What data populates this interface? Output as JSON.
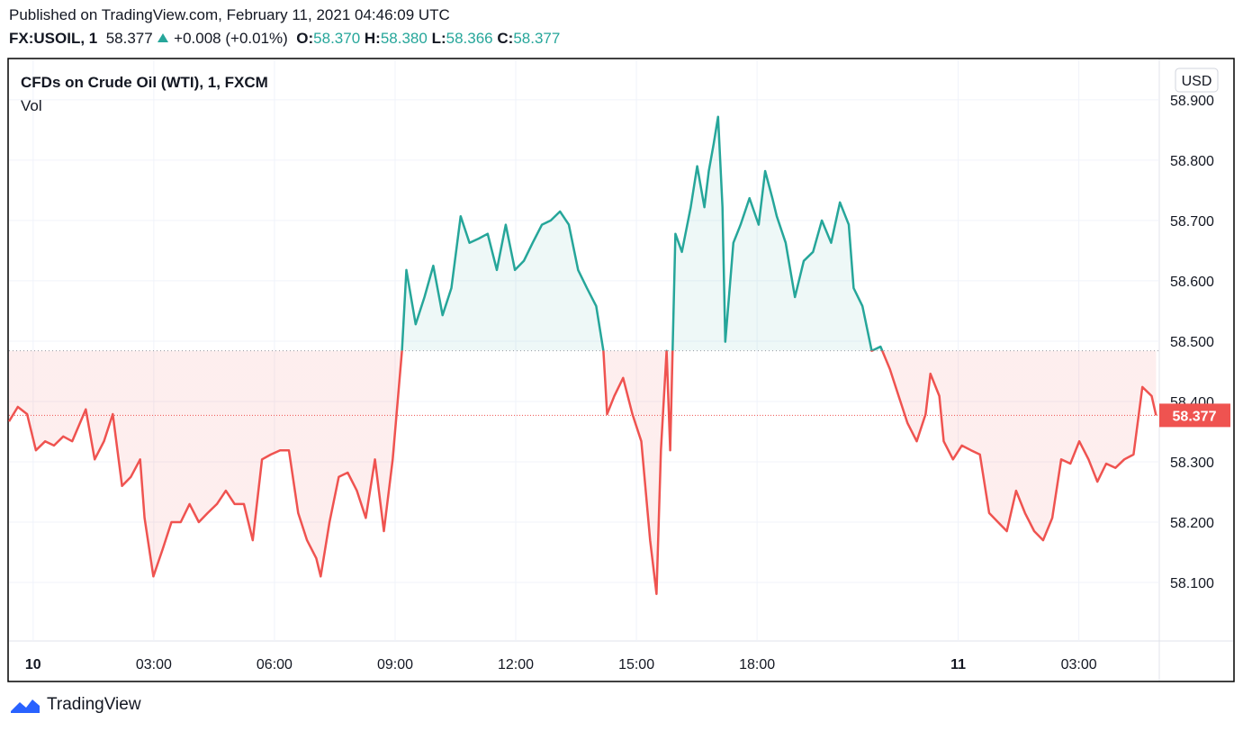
{
  "header": {
    "published": "Published on TradingView.com, February 11, 2021 04:46:09 UTC",
    "symbol": "FX:USOIL, 1",
    "last": "58.377",
    "change": "+0.008 (+0.01%)",
    "ohlc": [
      {
        "label": "O:",
        "value": "58.370"
      },
      {
        "label": "H:",
        "value": "58.380"
      },
      {
        "label": "L:",
        "value": "58.366"
      },
      {
        "label": "C:",
        "value": "58.377"
      }
    ]
  },
  "chart_data": {
    "type": "line",
    "title": "CFDs on Crude Oil (WTI), 1, FXCM",
    "indicator": "Vol",
    "currency": "USD",
    "color_up": "#26a69a",
    "color_down": "#ef5350",
    "baseline": 58.484,
    "last_value": 58.377,
    "grid": true,
    "xlim": [
      -0.6,
      28.0
    ],
    "ylim": [
      58.003,
      58.967
    ],
    "xticks": [
      {
        "value": 0,
        "label": "10"
      },
      {
        "value": 3,
        "label": "03:00"
      },
      {
        "value": 6,
        "label": "06:00"
      },
      {
        "value": 9,
        "label": "09:00"
      },
      {
        "value": 12,
        "label": "12:00"
      },
      {
        "value": 15,
        "label": "15:00"
      },
      {
        "value": 18,
        "label": "18:00"
      },
      {
        "value": 23,
        "label": "11"
      },
      {
        "value": 26,
        "label": "03:00"
      }
    ],
    "yticks": [
      {
        "value": 58.1,
        "label": "58.100"
      },
      {
        "value": 58.2,
        "label": "58.200"
      },
      {
        "value": 58.3,
        "label": "58.300"
      },
      {
        "value": 58.4,
        "label": "58.400"
      },
      {
        "value": 58.5,
        "label": "58.500"
      },
      {
        "value": 58.6,
        "label": "58.600"
      },
      {
        "value": 58.7,
        "label": "58.700"
      },
      {
        "value": 58.8,
        "label": "58.800"
      },
      {
        "value": 58.9,
        "label": "58.900"
      }
    ],
    "x": [
      -0.6,
      -0.38,
      -0.15,
      0.07,
      0.3,
      0.52,
      0.75,
      0.97,
      1.31,
      1.53,
      1.76,
      1.98,
      2.21,
      2.43,
      2.66,
      2.77,
      2.99,
      3.22,
      3.44,
      3.67,
      3.89,
      4.12,
      4.34,
      4.57,
      4.79,
      5.01,
      5.24,
      5.46,
      5.69,
      5.91,
      6.14,
      6.36,
      6.59,
      6.81,
      7.04,
      7.15,
      7.37,
      7.6,
      7.82,
      8.05,
      8.27,
      8.5,
      8.72,
      8.94,
      9.17,
      9.28,
      9.51,
      9.73,
      9.95,
      10.18,
      10.4,
      10.63,
      10.85,
      11.08,
      11.3,
      11.53,
      11.75,
      11.98,
      12.2,
      12.42,
      12.65,
      12.87,
      13.1,
      13.32,
      13.55,
      13.77,
      14.0,
      14.18,
      14.27,
      14.45,
      14.67,
      14.9,
      15.12,
      15.34,
      15.5,
      15.61,
      15.75,
      15.84,
      15.97,
      16.13,
      16.35,
      16.51,
      16.69,
      16.8,
      16.92,
      17.03,
      17.14,
      17.21,
      17.3,
      17.41,
      17.59,
      17.81,
      18.04,
      18.2,
      18.38,
      18.49,
      18.71,
      18.94,
      19.16,
      19.39,
      19.61,
      19.84,
      20.06,
      20.28,
      20.4,
      20.62,
      20.85,
      21.07,
      21.3,
      21.52,
      21.74,
      21.97,
      22.19,
      22.31,
      22.53,
      22.64,
      22.87,
      23.09,
      23.32,
      23.54,
      23.77,
      23.99,
      24.21,
      24.44,
      24.66,
      24.89,
      25.11,
      25.34,
      25.56,
      25.79,
      26.01,
      26.24,
      26.46,
      26.68,
      26.91,
      27.13,
      27.36,
      27.58,
      27.81,
      27.92
    ],
    "values": [
      58.367,
      58.391,
      58.379,
      58.319,
      58.334,
      58.327,
      58.342,
      58.334,
      58.387,
      58.304,
      58.334,
      58.379,
      58.26,
      58.275,
      58.304,
      58.207,
      58.11,
      58.155,
      58.2,
      58.2,
      58.23,
      58.2,
      58.215,
      58.23,
      58.252,
      58.23,
      58.23,
      58.17,
      58.304,
      58.312,
      58.319,
      58.319,
      58.215,
      58.17,
      58.14,
      58.11,
      58.2,
      58.275,
      58.282,
      58.252,
      58.207,
      58.304,
      58.185,
      58.304,
      58.484,
      58.618,
      58.528,
      58.573,
      58.625,
      58.543,
      58.588,
      58.707,
      58.663,
      58.67,
      58.678,
      58.618,
      58.693,
      58.618,
      58.633,
      58.663,
      58.693,
      58.7,
      58.715,
      58.693,
      58.618,
      58.588,
      58.558,
      58.484,
      58.379,
      58.409,
      58.439,
      58.379,
      58.334,
      58.17,
      58.081,
      58.319,
      58.484,
      58.319,
      58.678,
      58.648,
      58.722,
      58.79,
      58.722,
      58.782,
      58.827,
      58.872,
      58.722,
      58.499,
      58.573,
      58.663,
      58.693,
      58.737,
      58.693,
      58.782,
      58.737,
      58.707,
      58.663,
      58.573,
      58.633,
      58.648,
      58.7,
      58.663,
      58.73,
      58.693,
      58.588,
      58.558,
      58.484,
      58.491,
      58.454,
      58.409,
      58.364,
      58.334,
      58.379,
      58.446,
      58.409,
      58.334,
      58.304,
      58.327,
      58.319,
      58.312,
      58.215,
      58.2,
      58.185,
      58.252,
      58.215,
      58.185,
      58.17,
      58.207,
      58.304,
      58.297,
      58.334,
      58.304,
      58.267,
      58.297,
      58.29,
      58.304,
      58.312,
      58.424,
      58.409,
      58.377
    ]
  },
  "footer": "TradingView"
}
